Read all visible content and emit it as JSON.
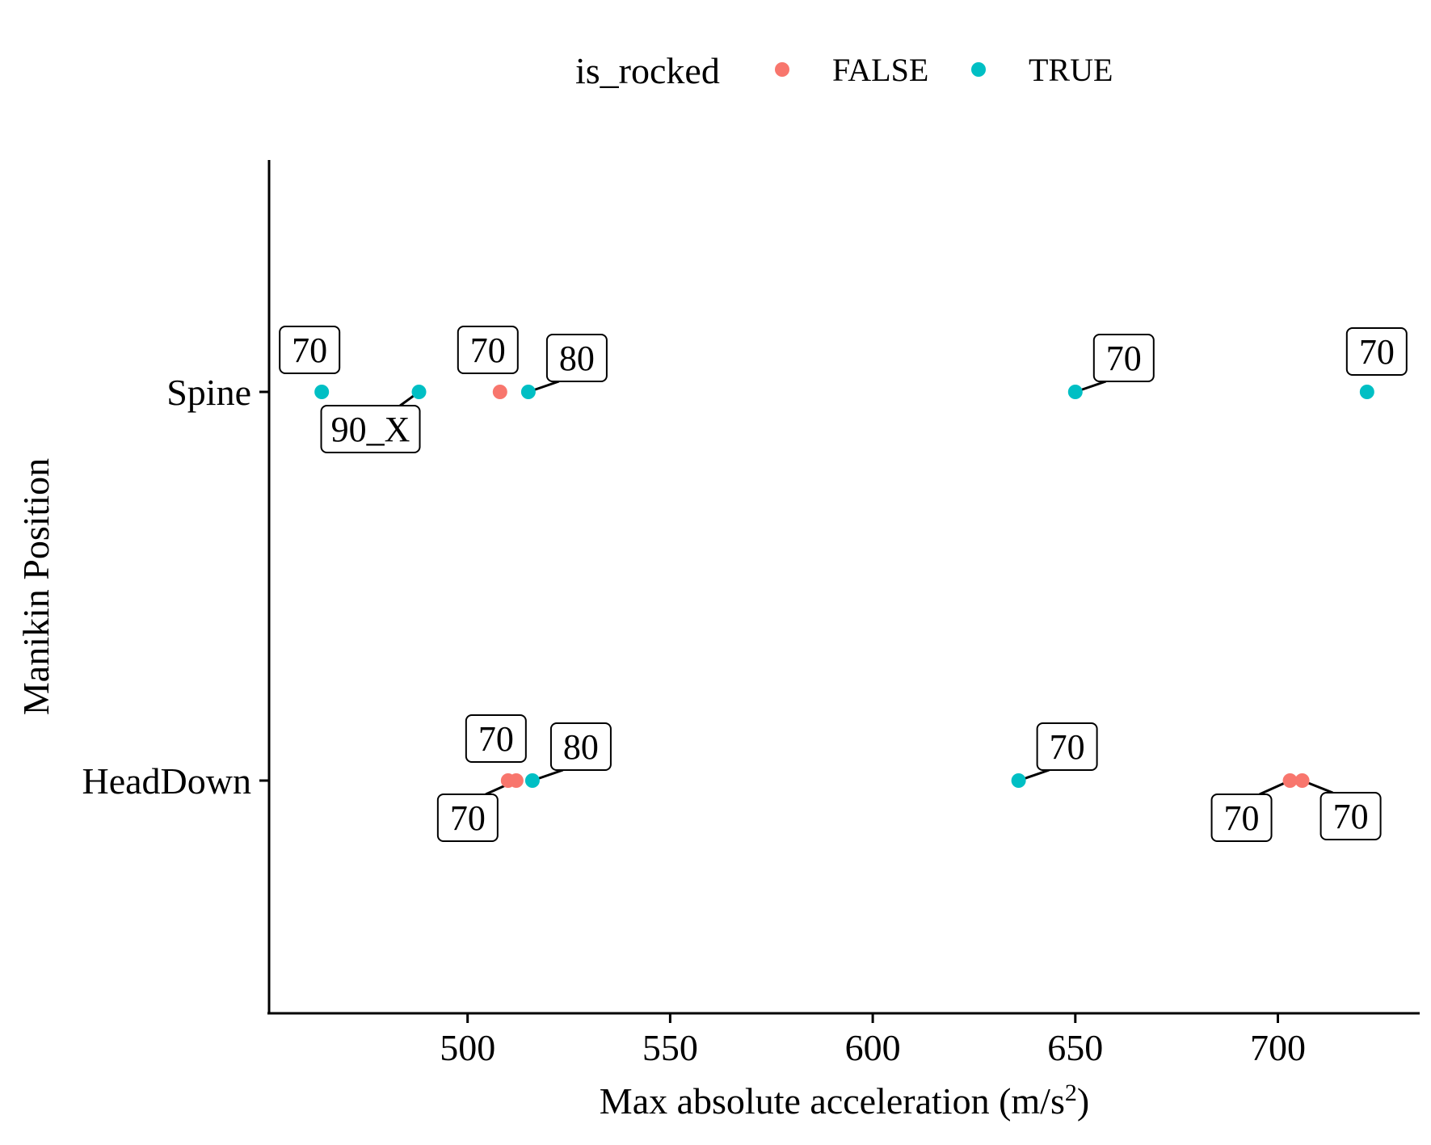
{
  "chart_data": {
    "type": "scatter",
    "title": "",
    "xlabel": "Max absolute acceleration (m/s",
    "xlabel_superscript": "2",
    "xlabel_suffix": ")",
    "ylabel": "Manikin Position",
    "xlim": [
      451,
      735
    ],
    "x_ticks": [
      500,
      550,
      600,
      650,
      700
    ],
    "x_tick_labels": [
      "500",
      "550",
      "600",
      "650",
      "700"
    ],
    "categories": [
      "HeadDown",
      "Spine"
    ],
    "grid": false,
    "legend": {
      "title": "is_rocked",
      "position": "top",
      "entries": [
        {
          "label": "FALSE",
          "color": "#F8766D"
        },
        {
          "label": "TRUE",
          "color": "#00BFC4"
        }
      ]
    },
    "points": [
      {
        "y": "Spine",
        "x": 464,
        "is_rocked": "TRUE",
        "label": "70",
        "label_pos": "above-left"
      },
      {
        "y": "Spine",
        "x": 488,
        "is_rocked": "TRUE",
        "label": "90_X",
        "label_pos": "below-left"
      },
      {
        "y": "Spine",
        "x": 508,
        "is_rocked": "FALSE",
        "label": "70",
        "label_pos": "above-left"
      },
      {
        "y": "Spine",
        "x": 515,
        "is_rocked": "TRUE",
        "label": "80",
        "label_pos": "above-right"
      },
      {
        "y": "Spine",
        "x": 650,
        "is_rocked": "TRUE",
        "label": "70",
        "label_pos": "above-right"
      },
      {
        "y": "Spine",
        "x": 722,
        "is_rocked": "TRUE",
        "label": "70",
        "label_pos": "above"
      },
      {
        "y": "HeadDown",
        "x": 510,
        "is_rocked": "FALSE",
        "label": "70",
        "label_pos": "above-left"
      },
      {
        "y": "HeadDown",
        "x": 512,
        "is_rocked": "FALSE",
        "label": "70",
        "label_pos": "below-left"
      },
      {
        "y": "HeadDown",
        "x": 516,
        "is_rocked": "TRUE",
        "label": "80",
        "label_pos": "above-right"
      },
      {
        "y": "HeadDown",
        "x": 636,
        "is_rocked": "TRUE",
        "label": "70",
        "label_pos": "above-right"
      },
      {
        "y": "HeadDown",
        "x": 703,
        "is_rocked": "FALSE",
        "label": "70",
        "label_pos": "below-left"
      },
      {
        "y": "HeadDown",
        "x": 706,
        "is_rocked": "FALSE",
        "label": "70",
        "label_pos": "below-right"
      }
    ]
  }
}
